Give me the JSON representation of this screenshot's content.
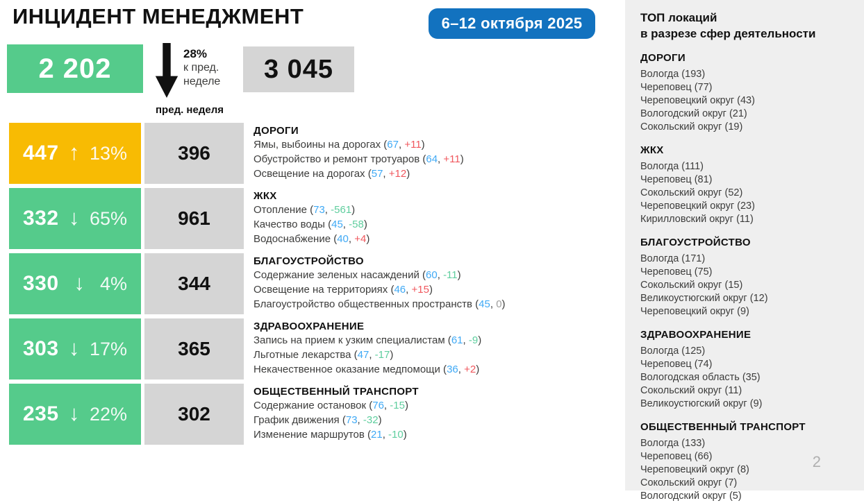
{
  "page": {
    "title": "ИНЦИДЕНТ МЕНЕДЖМЕНТ",
    "date_badge": "6–12 октября 2025",
    "page_number": "2"
  },
  "summary": {
    "current_total": "2 202",
    "trend_percent": "28%",
    "trend_caption_line1": "к пред.",
    "trend_caption_line2": "неделе",
    "previous_total": "3 045",
    "previous_label": "пред. неделя"
  },
  "icons": {
    "up_arrow": "↑",
    "down_arrow": "↓",
    "big_down_arrow": "down-arrow"
  },
  "colors": {
    "green_box": "#55CB8B",
    "yellow_box": "#F8BB03",
    "gray_box": "#D5D5D5",
    "badge_blue": "#1272BF",
    "value_blue": "#3FA9F5",
    "delta_red": "#F0575D",
    "delta_green": "#5FCE9E",
    "delta_gray": "#9D9D9C",
    "sidebar_bg": "#EFEFEF"
  },
  "categories": [
    {
      "name": "ДОРОГИ",
      "current": "447",
      "arrow": "up",
      "percent": "13%",
      "previous": "396",
      "box": "yellow",
      "items": [
        {
          "label": "Ямы, выбоины на дорогах",
          "value": "67",
          "delta": "+11",
          "delta_color": "red"
        },
        {
          "label": "Обустройство и ремонт тротуаров",
          "value": "64",
          "delta": "+11",
          "delta_color": "red"
        },
        {
          "label": "Освещение на дорогах",
          "value": "57",
          "delta": "+12",
          "delta_color": "red"
        }
      ]
    },
    {
      "name": "ЖКХ",
      "current": "332",
      "arrow": "down",
      "percent": "65%",
      "previous": "961",
      "box": "green",
      "items": [
        {
          "label": "Отопление",
          "value": "73",
          "delta": "-561",
          "delta_color": "green"
        },
        {
          "label": "Качество воды",
          "value": "45",
          "delta": "-58",
          "delta_color": "green"
        },
        {
          "label": "Водоснабжение",
          "value": "40",
          "delta": "+4",
          "delta_color": "red"
        }
      ]
    },
    {
      "name": "БЛАГОУСТРОЙСТВО",
      "current": "330",
      "arrow": "down",
      "percent": "4%",
      "previous": "344",
      "box": "green",
      "items": [
        {
          "label": "Содержание зеленых насаждений",
          "value": "60",
          "delta": "-11",
          "delta_color": "green"
        },
        {
          "label": "Освещение на территориях",
          "value": "46",
          "delta": "+15",
          "delta_color": "red"
        },
        {
          "label": "Благоустройство общественных пространств",
          "value": "45",
          "delta": "0",
          "delta_color": "gray"
        }
      ]
    },
    {
      "name": "ЗДРАВООХРАНЕНИЕ",
      "current": "303",
      "arrow": "down",
      "percent": "17%",
      "previous": "365",
      "box": "green",
      "items": [
        {
          "label": "Запись на прием к узким специалистам",
          "value": "61",
          "delta": "-9",
          "delta_color": "green"
        },
        {
          "label": "Льготные лекарства",
          "value": "47",
          "delta": "-17",
          "delta_color": "green"
        },
        {
          "label": "Некачественное оказание медпомощи",
          "value": "36",
          "delta": "+2",
          "delta_color": "red"
        }
      ]
    },
    {
      "name": "ОБЩЕСТВЕННЫЙ ТРАНСПОРТ",
      "current": "235",
      "arrow": "down",
      "percent": "22%",
      "previous": "302",
      "box": "green",
      "items": [
        {
          "label": "Содержание остановок",
          "value": "76",
          "delta": "-15",
          "delta_color": "green"
        },
        {
          "label": "График движения",
          "value": "73",
          "delta": "-32",
          "delta_color": "green"
        },
        {
          "label": "Изменение маршрутов",
          "value": "21",
          "delta": "-10",
          "delta_color": "green"
        }
      ]
    }
  ],
  "top_locations": {
    "title_line1": "ТОП локаций",
    "title_line2": "в разрезе сфер деятельности",
    "sections": [
      {
        "name": "ДОРОГИ",
        "items": [
          "Вологда (193)",
          "Череповец (77)",
          "Череповецкий округ (43)",
          "Вологодский округ (21)",
          "Сокольский округ (19)"
        ]
      },
      {
        "name": "ЖКХ",
        "items": [
          "Вологда (111)",
          "Череповец (81)",
          "Сокольский округ (52)",
          "Череповецкий округ (23)",
          "Кирилловский округ (11)"
        ]
      },
      {
        "name": "БЛАГОУСТРОЙСТВО",
        "items": [
          "Вологда (171)",
          "Череповец (75)",
          "Сокольский округ (15)",
          "Великоустюгский округ (12)",
          "Череповецкий округ (9)"
        ]
      },
      {
        "name": "ЗДРАВООХРАНЕНИЕ",
        "items": [
          "Вологда (125)",
          "Череповец (74)",
          "Вологодская область (35)",
          "Сокольский округ (11)",
          "Великоустюгский округ (9)"
        ]
      },
      {
        "name": "ОБЩЕСТВЕННЫЙ ТРАНСПОРТ",
        "items": [
          "Вологда (133)",
          "Череповец (66)",
          "Череповецкий округ (8)",
          "Сокольский округ (7)",
          "Вологодский округ (5)"
        ]
      }
    ]
  }
}
